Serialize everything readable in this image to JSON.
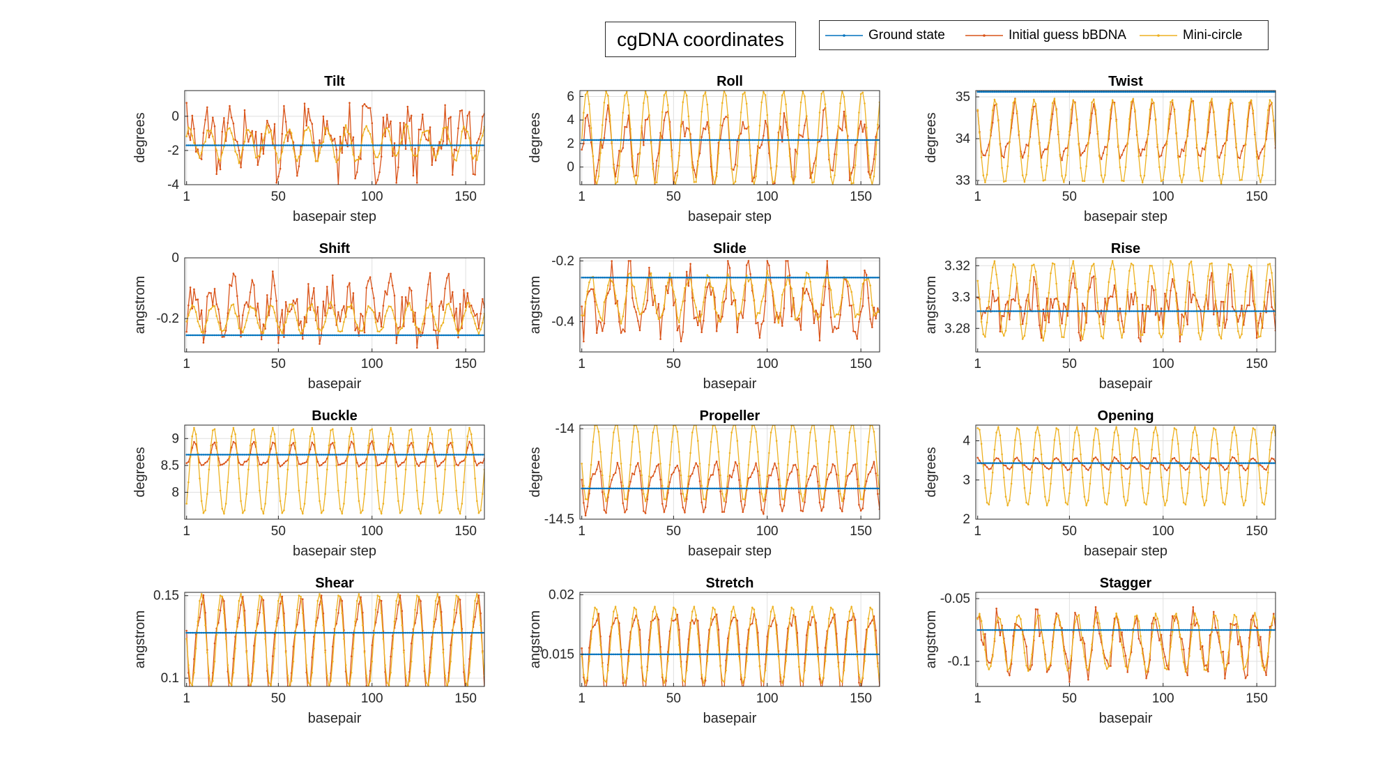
{
  "figure_title": "cgDNA coordinates",
  "legend": {
    "entries": [
      {
        "label": "Ground state",
        "color": "#0072BD",
        "marker": "dot"
      },
      {
        "label": "Initial guess bBDNA",
        "color": "#D95319",
        "marker": "dot"
      },
      {
        "label": "Mini-circle",
        "color": "#EDB120",
        "marker": "dot"
      }
    ]
  },
  "chart_data": [
    {
      "type": "line",
      "title": "Tilt",
      "xlabel": "basepair step",
      "ylabel": "degrees",
      "xlim": [
        0,
        160
      ],
      "ylim": [
        -4,
        1.5
      ],
      "xticks": [
        1,
        50,
        100,
        150
      ],
      "yticks": [
        -4,
        -2,
        0
      ],
      "grid": true,
      "x": {
        "start": 1,
        "end": 160
      },
      "series": [
        {
          "name": "Ground state",
          "kind": "const",
          "value": -1.7
        },
        {
          "name": "Initial guess bBDNA",
          "kind": "noisy",
          "mean": -1.4,
          "amp": 1.3,
          "period": 10.5,
          "noise": 1.4,
          "min": -4,
          "max": 1.4
        },
        {
          "name": "Mini-circle",
          "kind": "periodic",
          "mean": -1.6,
          "amp": 0.9,
          "period": 10.5,
          "noise": 0.25
        }
      ]
    },
    {
      "type": "line",
      "title": "Roll",
      "xlabel": "basepair step",
      "ylabel": "degrees",
      "xlim": [
        0,
        160
      ],
      "ylim": [
        -1.5,
        6.5
      ],
      "xticks": [
        1,
        50,
        100,
        150
      ],
      "yticks": [
        0,
        2,
        4,
        6
      ],
      "grid": true,
      "x": {
        "start": 1,
        "end": 160
      },
      "series": [
        {
          "name": "Ground state",
          "kind": "const",
          "value": 2.3
        },
        {
          "name": "Initial guess bBDNA",
          "kind": "noisy",
          "mean": 1.8,
          "amp": 2.4,
          "period": 10.5,
          "noise": 1.1,
          "min": -1.5,
          "max": 6.5
        },
        {
          "name": "Mini-circle",
          "kind": "periodic",
          "mean": 2.5,
          "amp": 4.0,
          "period": 10.5,
          "noise": 0.1,
          "min": -1.5,
          "max": 6.5
        }
      ]
    },
    {
      "type": "line",
      "title": "Twist",
      "xlabel": "basepair step",
      "ylabel": "degrees",
      "xlim": [
        0,
        160
      ],
      "ylim": [
        32.9,
        35.15
      ],
      "xticks": [
        1,
        50,
        100,
        150
      ],
      "yticks": [
        33,
        34,
        35
      ],
      "grid": true,
      "x": {
        "start": 1,
        "end": 160
      },
      "series": [
        {
          "name": "Ground state",
          "kind": "const",
          "value": 35.12
        },
        {
          "name": "Initial guess bBDNA",
          "kind": "noisy",
          "mean": 34.1,
          "amp": 0.6,
          "period": 10.5,
          "noise": 0.08
        },
        {
          "name": "Mini-circle",
          "kind": "periodic",
          "mean": 33.95,
          "amp": 1.0,
          "period": 10.5,
          "noise": 0.02,
          "min": 32.9,
          "max": 35.15
        }
      ]
    },
    {
      "type": "line",
      "title": "Shift",
      "xlabel": "basepair",
      "ylabel": "angstrom",
      "xlim": [
        0,
        160
      ],
      "ylim": [
        -0.31,
        0
      ],
      "xticks": [
        1,
        50,
        100,
        150
      ],
      "yticks": [
        -0.2,
        0
      ],
      "grid": true,
      "x": {
        "start": 1,
        "end": 160
      },
      "series": [
        {
          "name": "Ground state",
          "kind": "const",
          "value": -0.255
        },
        {
          "name": "Initial guess bBDNA",
          "kind": "noisy",
          "mean": -0.17,
          "amp": 0.06,
          "period": 10.5,
          "noise": 0.07,
          "min": -0.31,
          "max": -0.02
        },
        {
          "name": "Mini-circle",
          "kind": "periodic",
          "mean": -0.2,
          "amp": 0.045,
          "period": 10.5,
          "noise": 0.01
        }
      ]
    },
    {
      "type": "line",
      "title": "Slide",
      "xlabel": "basepair",
      "ylabel": "angstrom",
      "xlim": [
        0,
        160
      ],
      "ylim": [
        -0.5,
        -0.19
      ],
      "xticks": [
        1,
        50,
        100,
        150
      ],
      "yticks": [
        -0.4,
        -0.2
      ],
      "grid": true,
      "x": {
        "start": 1,
        "end": 160
      },
      "series": [
        {
          "name": "Ground state",
          "kind": "const",
          "value": -0.255
        },
        {
          "name": "Initial guess bBDNA",
          "kind": "noisy",
          "mean": -0.34,
          "amp": 0.08,
          "period": 10.5,
          "noise": 0.06,
          "min": -0.5,
          "max": -0.2
        },
        {
          "name": "Mini-circle",
          "kind": "periodic",
          "mean": -0.32,
          "amp": 0.07,
          "period": 10.5,
          "noise": 0.02
        }
      ]
    },
    {
      "type": "line",
      "title": "Rise",
      "xlabel": "basepair",
      "ylabel": "angstrom",
      "xlim": [
        0,
        160
      ],
      "ylim": [
        3.265,
        3.325
      ],
      "xticks": [
        1,
        50,
        100,
        150
      ],
      "yticks": [
        3.28,
        3.3,
        3.32
      ],
      "grid": true,
      "x": {
        "start": 1,
        "end": 160
      },
      "series": [
        {
          "name": "Ground state",
          "kind": "const",
          "value": 3.291
        },
        {
          "name": "Initial guess bBDNA",
          "kind": "noisy",
          "mean": 3.293,
          "amp": 0.01,
          "period": 10.5,
          "noise": 0.012,
          "min": 3.265,
          "max": 3.325
        },
        {
          "name": "Mini-circle",
          "kind": "periodic",
          "mean": 3.298,
          "amp": 0.024,
          "period": 10.5,
          "noise": 0.002,
          "min": 3.265,
          "max": 3.325
        }
      ]
    },
    {
      "type": "line",
      "title": "Buckle",
      "xlabel": "basepair step",
      "ylabel": "degrees",
      "xlim": [
        0,
        160
      ],
      "ylim": [
        7.5,
        9.25
      ],
      "xticks": [
        1,
        50,
        100,
        150
      ],
      "yticks": [
        8,
        8.5,
        9
      ],
      "grid": true,
      "x": {
        "start": 1,
        "end": 160
      },
      "series": [
        {
          "name": "Ground state",
          "kind": "const",
          "value": 8.7
        },
        {
          "name": "Initial guess bBDNA",
          "kind": "noisy",
          "mean": 8.67,
          "amp": 0.2,
          "period": 10.5,
          "noise": 0.02
        },
        {
          "name": "Mini-circle",
          "kind": "periodic",
          "mean": 8.4,
          "amp": 0.8,
          "period": 10.5,
          "noise": 0.0,
          "min": 7.5,
          "max": 9.25
        }
      ]
    },
    {
      "type": "line",
      "title": "Propeller",
      "xlabel": "basepair step",
      "ylabel": "degrees",
      "xlim": [
        0,
        160
      ],
      "ylim": [
        -14.5,
        -13.98
      ],
      "xticks": [
        1,
        50,
        100,
        150
      ],
      "yticks": [
        -14.5,
        -14
      ],
      "grid": true,
      "x": {
        "start": 1,
        "end": 160
      },
      "series": [
        {
          "name": "Ground state",
          "kind": "const",
          "value": -14.33
        },
        {
          "name": "Initial guess bBDNA",
          "kind": "noisy",
          "mean": -14.31,
          "amp": 0.12,
          "period": 10.5,
          "noise": 0.015
        },
        {
          "name": "Mini-circle",
          "kind": "periodic",
          "mean": -14.18,
          "amp": 0.22,
          "period": 10.5,
          "noise": 0.0,
          "min": -14.5,
          "max": -13.98
        }
      ]
    },
    {
      "type": "line",
      "title": "Opening",
      "xlabel": "basepair step",
      "ylabel": "degrees",
      "xlim": [
        0,
        160
      ],
      "ylim": [
        2,
        4.4
      ],
      "xticks": [
        1,
        50,
        100,
        150
      ],
      "yticks": [
        2,
        3,
        4
      ],
      "grid": true,
      "x": {
        "start": 1,
        "end": 160
      },
      "series": [
        {
          "name": "Ground state",
          "kind": "const",
          "value": 3.43
        },
        {
          "name": "Initial guess bBDNA",
          "kind": "noisy",
          "mean": 3.41,
          "amp": 0.13,
          "period": 10.5,
          "noise": 0.02
        },
        {
          "name": "Mini-circle",
          "kind": "periodic",
          "mean": 3.35,
          "amp": 1.0,
          "period": 10.5,
          "noise": 0.0
        }
      ]
    },
    {
      "type": "line",
      "title": "Shear",
      "xlabel": "basepair",
      "ylabel": "angstrom",
      "xlim": [
        0,
        160
      ],
      "ylim": [
        0.095,
        0.152
      ],
      "xticks": [
        1,
        50,
        100,
        150
      ],
      "yticks": [
        0.1,
        0.15
      ],
      "grid": true,
      "x": {
        "start": 1,
        "end": 160
      },
      "series": [
        {
          "name": "Ground state",
          "kind": "const",
          "value": 0.1275
        },
        {
          "name": "Initial guess bBDNA",
          "kind": "noisy",
          "mean": 0.123,
          "amp": 0.026,
          "period": 10.5,
          "noise": 0.001
        },
        {
          "name": "Mini-circle",
          "kind": "periodic",
          "mean": 0.123,
          "amp": 0.028,
          "period": 10.5,
          "noise": 0.0,
          "min": 0.095,
          "max": 0.152
        }
      ]
    },
    {
      "type": "line",
      "title": "Stretch",
      "xlabel": "basepair",
      "ylabel": "angstrom",
      "xlim": [
        0,
        160
      ],
      "ylim": [
        0.0123,
        0.0202
      ],
      "xticks": [
        1,
        50,
        100,
        150
      ],
      "yticks": [
        0.015,
        0.02
      ],
      "grid": true,
      "x": {
        "start": 1,
        "end": 160
      },
      "series": [
        {
          "name": "Ground state",
          "kind": "const",
          "value": 0.015
        },
        {
          "name": "Initial guess bBDNA",
          "kind": "noisy",
          "mean": 0.0158,
          "amp": 0.003,
          "period": 10.5,
          "noise": 0.0003
        },
        {
          "name": "Mini-circle",
          "kind": "periodic",
          "mean": 0.0158,
          "amp": 0.0032,
          "period": 10.5,
          "noise": 0.0,
          "min": 0.0123,
          "max": 0.0202
        }
      ]
    },
    {
      "type": "line",
      "title": "Stagger",
      "xlabel": "basepair",
      "ylabel": "angstrom",
      "xlim": [
        0,
        160
      ],
      "ylim": [
        -0.12,
        -0.045
      ],
      "xticks": [
        1,
        50,
        100,
        150
      ],
      "yticks": [
        -0.1,
        -0.05
      ],
      "grid": true,
      "x": {
        "start": 1,
        "end": 160
      },
      "series": [
        {
          "name": "Ground state",
          "kind": "const",
          "value": -0.075
        },
        {
          "name": "Initial guess bBDNA",
          "kind": "noisy",
          "mean": -0.085,
          "amp": 0.02,
          "period": 10.5,
          "noise": 0.008,
          "min": -0.12,
          "max": -0.045
        },
        {
          "name": "Mini-circle",
          "kind": "periodic",
          "mean": -0.085,
          "amp": 0.022,
          "period": 10.5,
          "noise": 0.002,
          "min": -0.12,
          "max": -0.045
        }
      ]
    }
  ]
}
